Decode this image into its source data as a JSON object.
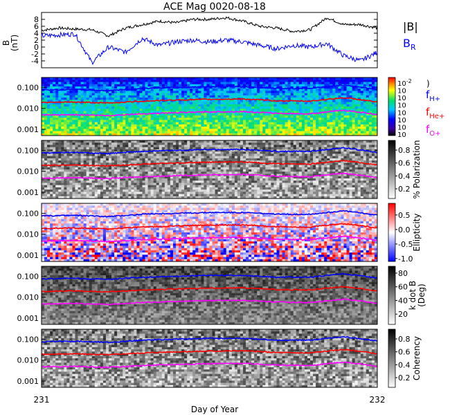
{
  "title": "ACE Mag 0020-08-18",
  "xlabel": "Day of Year",
  "x_ticks": [
    "231",
    "232"
  ],
  "x_range": [
    231,
    232
  ],
  "panel1": {
    "ylabel_line1": "B",
    "ylabel_line2": "(nT)",
    "y_ticks": [
      "-4",
      "-2",
      "0",
      "2",
      "4",
      "6",
      "8"
    ],
    "ylim": [
      -6,
      10
    ],
    "legend_b": "|B|",
    "legend_br": "B",
    "legend_br_sub": "R",
    "color_b": "#000000",
    "color_br": "#0000ff"
  },
  "freq_ticks": [
    "0.001",
    "0.010",
    "0.100"
  ],
  "freq_lines": {
    "h_label": "f",
    "h_sub": "H+",
    "h_color": "#0000ff",
    "he_label": "f",
    "he_sub": "He+",
    "he_color": "#ff0000",
    "o_label": "f",
    "o_sub": "O+",
    "o_color": "#ff00ff"
  },
  "colorbars": {
    "power": {
      "tick_base": "10",
      "exponents": [
        "-2",
        "",
        "",
        "",
        "",
        "",
        "",
        ""
      ],
      "label_suffix": ")"
    },
    "polarization": {
      "ticks": [
        "0.2",
        "0.4",
        "0.6",
        "0.8"
      ],
      "label": "% Polarization"
    },
    "ellipticity": {
      "ticks": [
        "-1.0",
        "-0.5",
        "0.0",
        "0.5"
      ],
      "label": "Ellipticity"
    },
    "kdotb": {
      "ticks": [
        "20",
        "40",
        "60",
        "80"
      ],
      "label_line1": "k dot B",
      "label_line2": "(Deg)"
    },
    "coherency": {
      "ticks": [
        "0.2",
        "0.4",
        "0.6",
        "0.8"
      ],
      "label": "Coherency"
    }
  },
  "chart_data": [
    {
      "type": "line",
      "title": "ACE Mag 0020-08-18",
      "ylabel": "B (nT)",
      "xlim": [
        231,
        232
      ],
      "ylim": [
        -6,
        10
      ],
      "series": [
        {
          "name": "|B|",
          "x": [
            231.0,
            231.05,
            231.1,
            231.15,
            231.2,
            231.25,
            231.3,
            231.35,
            231.4,
            231.45,
            231.5,
            231.55,
            231.6,
            231.65,
            231.7,
            231.75,
            231.8,
            231.85,
            231.9,
            231.95,
            232.0
          ],
          "values": [
            4.8,
            5.5,
            5.2,
            5.0,
            3.2,
            5.5,
            6.5,
            7.5,
            7.0,
            8.0,
            8.0,
            8.5,
            7.5,
            6.0,
            5.5,
            4.5,
            5.0,
            8.5,
            6.5,
            6.5,
            5.5
          ]
        },
        {
          "name": "B_R",
          "x": [
            231.0,
            231.05,
            231.1,
            231.15,
            231.2,
            231.25,
            231.3,
            231.35,
            231.4,
            231.45,
            231.5,
            231.55,
            231.6,
            231.65,
            231.7,
            231.75,
            231.8,
            231.85,
            231.9,
            231.95,
            232.0
          ],
          "values": [
            3.2,
            3.5,
            3.8,
            -4.5,
            0.0,
            -1.5,
            2.5,
            0.5,
            1.5,
            2.0,
            1.5,
            2.0,
            1.5,
            0.5,
            -0.5,
            0.5,
            0.0,
            1.0,
            -2.5,
            -4.0,
            -1.5
          ]
        }
      ]
    },
    {
      "type": "line",
      "ylabel": "Frequency",
      "y_scale": "log",
      "ylim": [
        0.0005,
        0.3
      ],
      "xlim": [
        231,
        232
      ],
      "series": [
        {
          "name": "fH+",
          "x": [
            231.0,
            231.1,
            231.2,
            231.3,
            231.4,
            231.5,
            231.6,
            231.7,
            231.8,
            231.9,
            232.0
          ],
          "values": [
            0.075,
            0.08,
            0.07,
            0.09,
            0.1,
            0.11,
            0.11,
            0.09,
            0.09,
            0.13,
            0.08
          ]
        },
        {
          "name": "fHe+",
          "x": [
            231.0,
            231.1,
            231.2,
            231.3,
            231.4,
            231.5,
            231.6,
            231.7,
            231.8,
            231.9,
            232.0
          ],
          "values": [
            0.019,
            0.02,
            0.018,
            0.022,
            0.025,
            0.027,
            0.028,
            0.023,
            0.022,
            0.032,
            0.02
          ]
        },
        {
          "name": "fO+",
          "x": [
            231.0,
            231.1,
            231.2,
            231.3,
            231.4,
            231.5,
            231.6,
            231.7,
            231.8,
            231.9,
            232.0
          ],
          "values": [
            0.0047,
            0.005,
            0.0045,
            0.0055,
            0.0062,
            0.0068,
            0.007,
            0.0058,
            0.0055,
            0.008,
            0.005
          ]
        }
      ]
    }
  ]
}
